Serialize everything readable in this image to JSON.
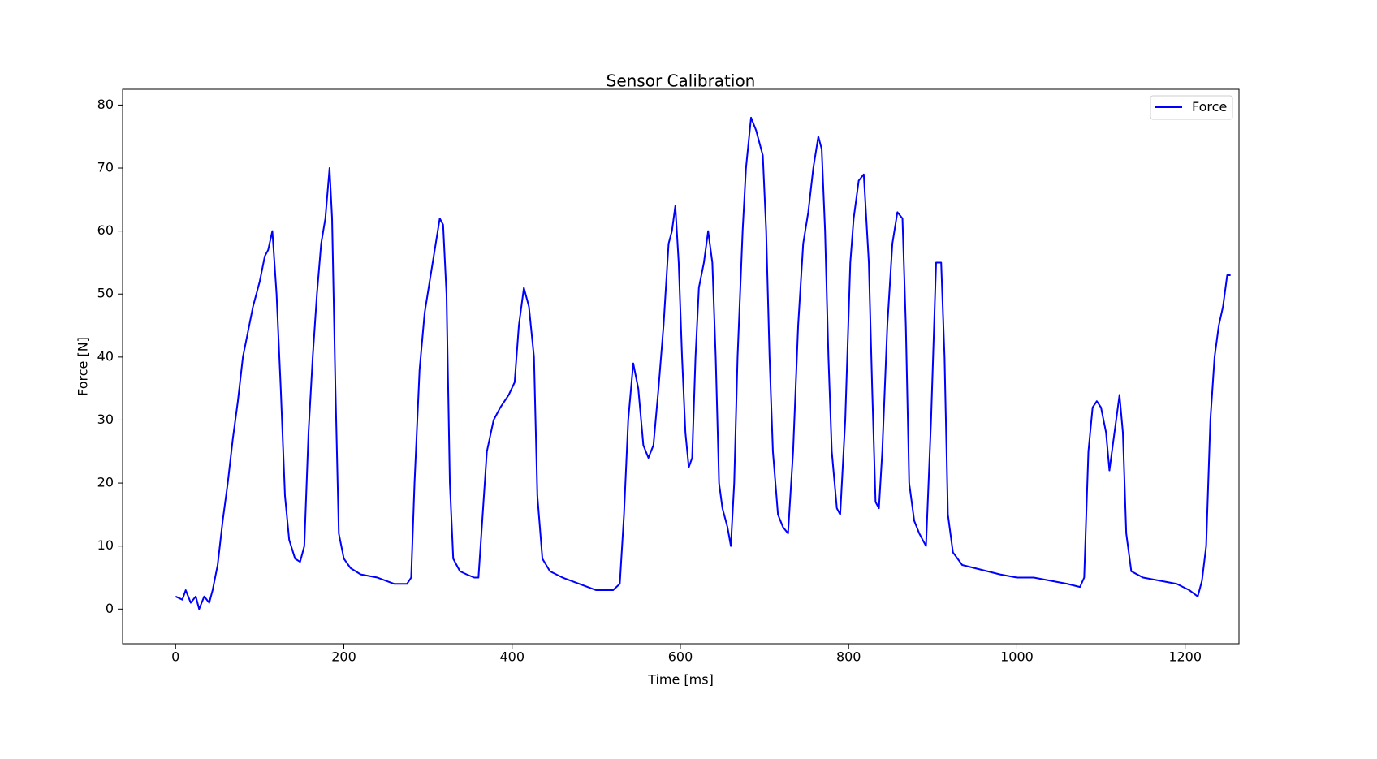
{
  "chart_data": {
    "type": "line",
    "title": "Sensor Calibration",
    "xlabel": "Time [ms]",
    "ylabel": "Force [N]",
    "xlim": [
      -63,
      1264
    ],
    "ylim": [
      -5.5,
      82.5
    ],
    "xticks": [
      0,
      200,
      400,
      600,
      800,
      1000,
      1200
    ],
    "yticks": [
      0,
      10,
      20,
      30,
      40,
      50,
      60,
      70,
      80
    ],
    "grid": false,
    "legend_position": "top-right",
    "colors": {
      "series": "#0000ff",
      "axes": "#000000",
      "background": "#ffffff"
    },
    "series": [
      {
        "name": "Force",
        "points": [
          [
            0,
            2
          ],
          [
            8,
            1.5
          ],
          [
            12,
            3
          ],
          [
            18,
            1
          ],
          [
            24,
            2
          ],
          [
            28,
            0
          ],
          [
            34,
            2
          ],
          [
            40,
            1
          ],
          [
            44,
            3
          ],
          [
            50,
            7
          ],
          [
            56,
            14
          ],
          [
            62,
            20
          ],
          [
            68,
            27
          ],
          [
            74,
            33
          ],
          [
            80,
            40
          ],
          [
            86,
            44
          ],
          [
            92,
            48
          ],
          [
            100,
            52
          ],
          [
            106,
            56
          ],
          [
            110,
            57
          ],
          [
            115,
            60
          ],
          [
            120,
            50
          ],
          [
            125,
            35
          ],
          [
            130,
            18
          ],
          [
            135,
            11
          ],
          [
            142,
            8
          ],
          [
            148,
            7.5
          ],
          [
            153,
            10
          ],
          [
            158,
            28
          ],
          [
            163,
            40
          ],
          [
            168,
            50
          ],
          [
            173,
            58
          ],
          [
            178,
            62
          ],
          [
            183,
            70
          ],
          [
            186,
            62
          ],
          [
            190,
            35
          ],
          [
            194,
            12
          ],
          [
            200,
            8
          ],
          [
            208,
            6.5
          ],
          [
            220,
            5.5
          ],
          [
            240,
            5
          ],
          [
            260,
            4
          ],
          [
            275,
            4
          ],
          [
            280,
            5
          ],
          [
            284,
            20
          ],
          [
            290,
            38
          ],
          [
            296,
            47
          ],
          [
            302,
            52
          ],
          [
            308,
            57
          ],
          [
            314,
            62
          ],
          [
            318,
            61
          ],
          [
            322,
            50
          ],
          [
            326,
            20
          ],
          [
            330,
            8
          ],
          [
            338,
            6
          ],
          [
            346,
            5.5
          ],
          [
            355,
            5
          ],
          [
            360,
            5
          ],
          [
            365,
            15
          ],
          [
            370,
            25
          ],
          [
            378,
            30
          ],
          [
            386,
            32
          ],
          [
            396,
            34
          ],
          [
            403,
            36
          ],
          [
            408,
            45
          ],
          [
            414,
            51
          ],
          [
            420,
            48
          ],
          [
            426,
            40
          ],
          [
            430,
            18
          ],
          [
            436,
            8
          ],
          [
            445,
            6
          ],
          [
            460,
            5
          ],
          [
            480,
            4
          ],
          [
            500,
            3
          ],
          [
            520,
            3
          ],
          [
            528,
            4
          ],
          [
            533,
            15
          ],
          [
            538,
            30
          ],
          [
            544,
            39
          ],
          [
            550,
            35
          ],
          [
            556,
            26
          ],
          [
            562,
            24
          ],
          [
            568,
            26
          ],
          [
            574,
            35
          ],
          [
            580,
            45
          ],
          [
            586,
            58
          ],
          [
            590,
            60
          ],
          [
            594,
            64
          ],
          [
            598,
            55
          ],
          [
            602,
            40
          ],
          [
            606,
            28
          ],
          [
            610,
            22.5
          ],
          [
            614,
            24
          ],
          [
            618,
            40
          ],
          [
            622,
            51
          ],
          [
            628,
            55
          ],
          [
            633,
            60
          ],
          [
            638,
            55
          ],
          [
            642,
            40
          ],
          [
            646,
            20
          ],
          [
            650,
            16
          ],
          [
            656,
            13
          ],
          [
            660,
            10
          ],
          [
            664,
            20
          ],
          [
            668,
            40
          ],
          [
            674,
            60
          ],
          [
            678,
            70
          ],
          [
            684,
            78
          ],
          [
            690,
            76
          ],
          [
            698,
            72
          ],
          [
            702,
            60
          ],
          [
            706,
            40
          ],
          [
            710,
            25
          ],
          [
            716,
            15
          ],
          [
            722,
            13
          ],
          [
            728,
            12
          ],
          [
            734,
            25
          ],
          [
            740,
            45
          ],
          [
            746,
            58
          ],
          [
            752,
            63
          ],
          [
            758,
            70
          ],
          [
            764,
            75
          ],
          [
            768,
            73
          ],
          [
            772,
            60
          ],
          [
            776,
            40
          ],
          [
            780,
            25
          ],
          [
            786,
            16
          ],
          [
            790,
            15
          ],
          [
            796,
            30
          ],
          [
            802,
            55
          ],
          [
            806,
            62
          ],
          [
            812,
            68
          ],
          [
            818,
            69
          ],
          [
            824,
            55
          ],
          [
            828,
            35
          ],
          [
            832,
            17
          ],
          [
            836,
            16
          ],
          [
            840,
            25
          ],
          [
            846,
            45
          ],
          [
            852,
            58
          ],
          [
            858,
            63
          ],
          [
            864,
            62
          ],
          [
            868,
            45
          ],
          [
            872,
            20
          ],
          [
            878,
            14
          ],
          [
            884,
            12
          ],
          [
            888,
            11
          ],
          [
            892,
            10
          ],
          [
            898,
            30
          ],
          [
            904,
            55
          ],
          [
            910,
            55
          ],
          [
            914,
            40
          ],
          [
            918,
            15
          ],
          [
            924,
            9
          ],
          [
            935,
            7
          ],
          [
            950,
            6.5
          ],
          [
            980,
            5.5
          ],
          [
            1000,
            5
          ],
          [
            1020,
            5
          ],
          [
            1040,
            4.5
          ],
          [
            1060,
            4
          ],
          [
            1075,
            3.5
          ],
          [
            1080,
            5
          ],
          [
            1085,
            25
          ],
          [
            1090,
            32
          ],
          [
            1095,
            33
          ],
          [
            1100,
            32
          ],
          [
            1106,
            28
          ],
          [
            1110,
            22
          ],
          [
            1114,
            26
          ],
          [
            1118,
            30
          ],
          [
            1122,
            34
          ],
          [
            1126,
            28
          ],
          [
            1130,
            12
          ],
          [
            1136,
            6
          ],
          [
            1150,
            5
          ],
          [
            1170,
            4.5
          ],
          [
            1190,
            4
          ],
          [
            1205,
            3
          ],
          [
            1215,
            2
          ],
          [
            1220,
            4.5
          ],
          [
            1225,
            10
          ],
          [
            1230,
            30
          ],
          [
            1235,
            40
          ],
          [
            1240,
            45
          ],
          [
            1245,
            48
          ],
          [
            1250,
            53
          ],
          [
            1254,
            53
          ]
        ]
      }
    ]
  }
}
